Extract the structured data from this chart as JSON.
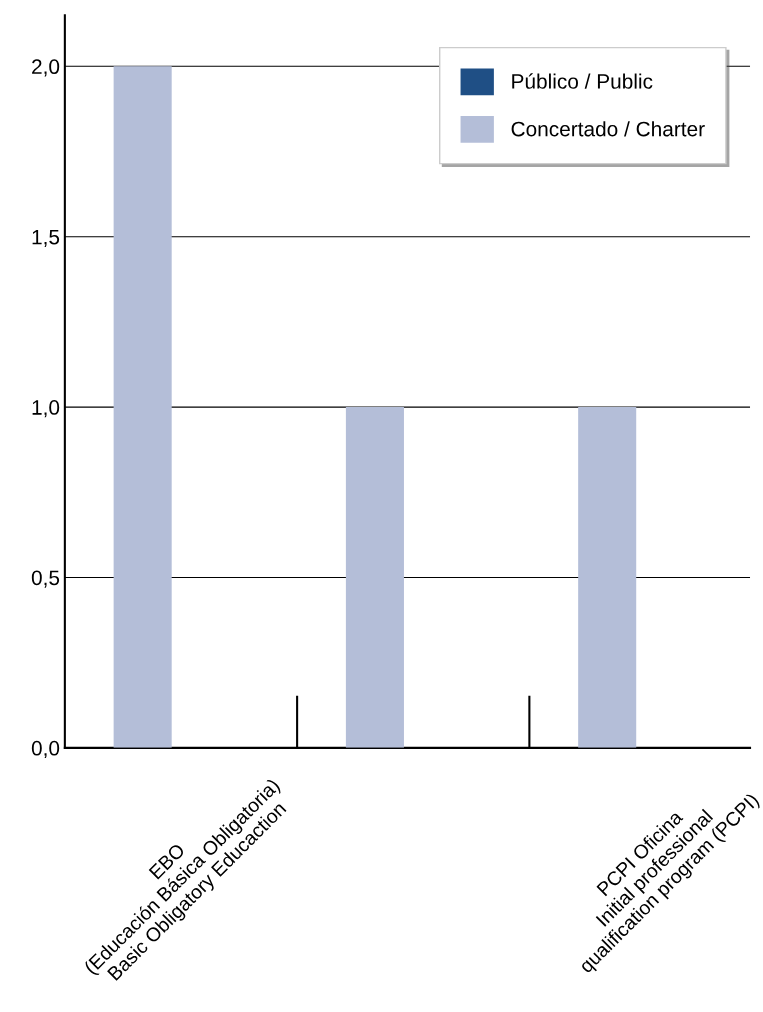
{
  "chart_data": {
    "type": "bar",
    "categories": [
      "EBO\n(Educación Básica Obligatoria)\nBasic Obligatory Educaction",
      null,
      "PCPI Oficina\nInitial professional\nqualification program (PCPI)"
    ],
    "series": [
      {
        "name": "Concertado / Charter",
        "color": "#b4bed8",
        "values": [
          2.0,
          1.0,
          1.0
        ]
      },
      {
        "name": "Público / Public",
        "color": "#1f4f85",
        "values": [
          0,
          0,
          0
        ]
      }
    ],
    "ylim": [
      0,
      2.15
    ],
    "yticks": [
      {
        "value": 0,
        "label": "0,0"
      },
      {
        "value": 0.5,
        "label": "0,5"
      },
      {
        "value": 1,
        "label": "1,0"
      },
      {
        "value": 1.5,
        "label": "1,5"
      },
      {
        "value": 2,
        "label": "2,0"
      }
    ],
    "grid": "y",
    "legend": "top right"
  }
}
